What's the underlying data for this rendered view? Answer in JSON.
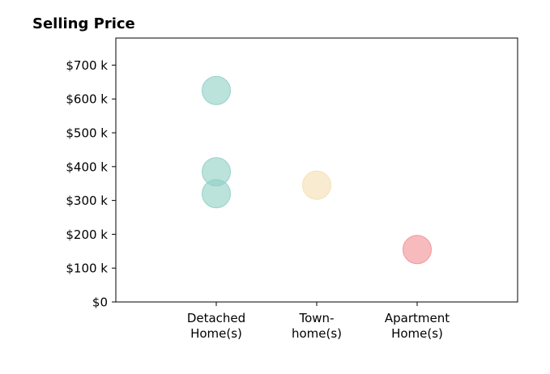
{
  "chart_data": {
    "type": "scatter",
    "title": "Selling Price",
    "xlabel": "",
    "ylabel": "",
    "categories": [
      [
        "Detached",
        "Home(s)"
      ],
      [
        "Town-",
        "home(s)"
      ],
      [
        "Apartment",
        "Home(s)"
      ]
    ],
    "y_ticks": [
      0,
      100,
      200,
      300,
      400,
      500,
      600,
      700
    ],
    "y_tick_labels": [
      "$0",
      "$100 k",
      "$200 k",
      "$300 k",
      "$400 k",
      "$500 k",
      "$600 k",
      "$700 k"
    ],
    "ylim": [
      0,
      780
    ],
    "xlim": [
      -1,
      3
    ],
    "grid": false,
    "legend": "none",
    "points": [
      {
        "category": 0,
        "y": 625,
        "color": "#8fcfc4"
      },
      {
        "category": 0,
        "y": 385,
        "color": "#8fcfc4"
      },
      {
        "category": 0,
        "y": 320,
        "color": "#8fcfc4"
      },
      {
        "category": 1,
        "y": 345,
        "color": "#f5deb0"
      },
      {
        "category": 2,
        "y": 155,
        "color": "#f28e92"
      }
    ]
  }
}
